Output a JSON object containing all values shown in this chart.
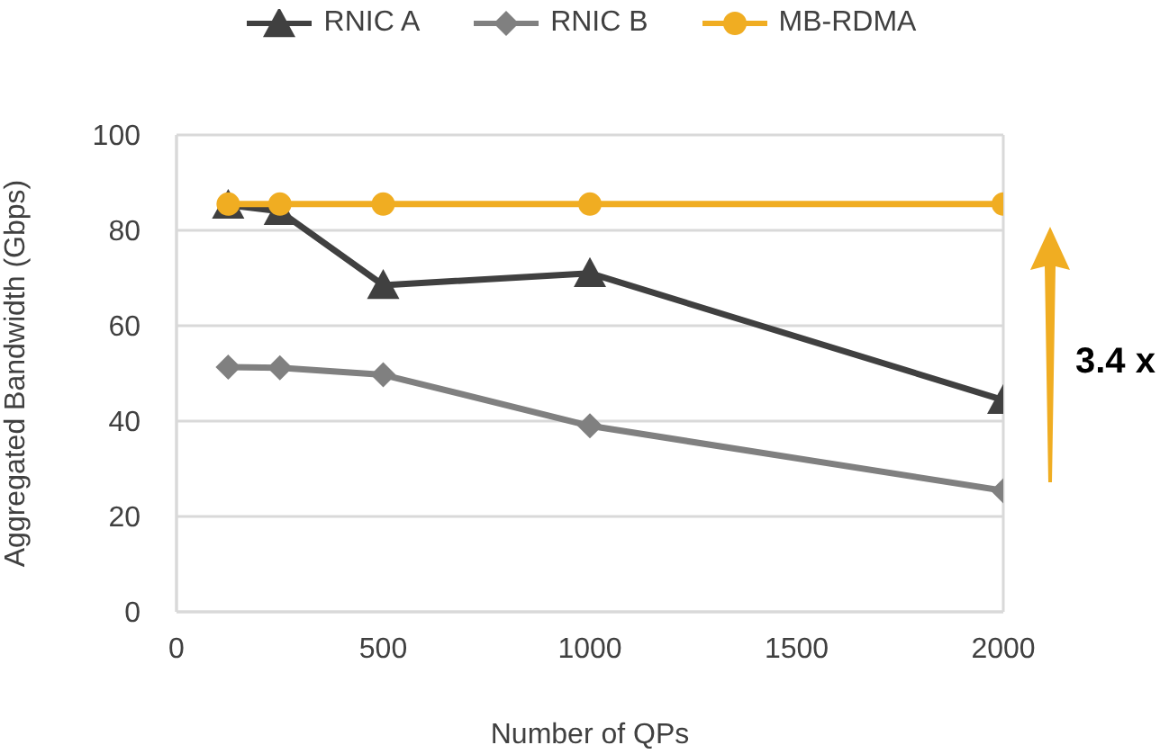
{
  "chart_data": {
    "type": "line",
    "xlabel": "Number of QPs",
    "ylabel": "Aggregated Bandwidth (Gbps)",
    "x": [
      125,
      250,
      500,
      1000,
      2000
    ],
    "xlim": [
      0,
      2000
    ],
    "xticks": [
      0,
      500,
      1000,
      1500,
      2000
    ],
    "ylim": [
      0,
      100
    ],
    "yticks": [
      0,
      20,
      40,
      60,
      80,
      100
    ],
    "grid": "y",
    "legend": "top",
    "series": [
      {
        "name": "RNIC A",
        "color": "#404040",
        "marker": "triangle",
        "values": [
          85.3,
          84,
          68.5,
          71,
          44.4
        ]
      },
      {
        "name": "RNIC B",
        "color": "#808080",
        "marker": "diamond",
        "values": [
          51.3,
          51.2,
          49.7,
          39,
          25.4
        ]
      },
      {
        "name": "MB-RDMA",
        "color": "#f0ad22",
        "marker": "circle",
        "values": [
          85.5,
          85.5,
          85.5,
          85.5,
          85.5
        ]
      }
    ],
    "annotations": [
      "3.4 x"
    ]
  }
}
